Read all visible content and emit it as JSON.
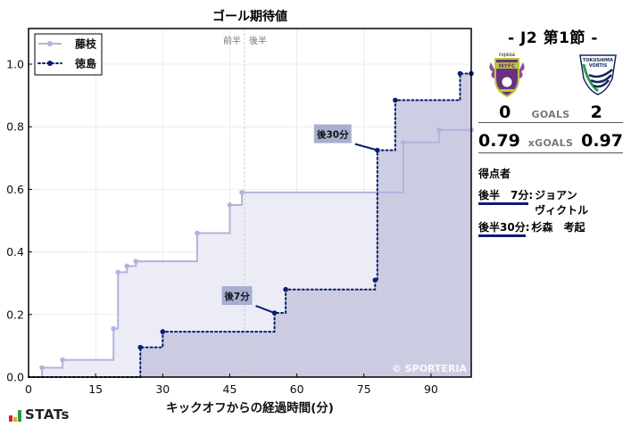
{
  "title": "ゴール期待値",
  "half_labels": {
    "first": "前半",
    "second": "後半"
  },
  "legend": [
    {
      "label": "藤枝",
      "color": "#b3b3dd",
      "style": "solid"
    },
    {
      "label": "徳島",
      "color": "#0a1f6e",
      "style": "dotted"
    }
  ],
  "annotations": [
    {
      "label": "後7分",
      "team": "徳島",
      "minute": 55,
      "xg": 0.205
    },
    {
      "label": "後30分",
      "team": "徳島",
      "minute": 78,
      "xg": 0.725
    }
  ],
  "watermark": "© SPORTERIA",
  "side": {
    "round": "- J2 第1節 -",
    "home_logo": "FUJIEDA MYFC",
    "away_logo": "TOKUSHIMA VORTIS",
    "goals": {
      "home": "0",
      "label": "GOALS",
      "away": "2"
    },
    "xgoals": {
      "home": "0.79",
      "label": "xGOALS",
      "away": "0.97"
    },
    "scorers_heading": "得点者",
    "scorers": [
      {
        "time": "後半　7分",
        "sep": ":",
        "name": "ジョアン\nヴィクトル"
      },
      {
        "time": "後半30分",
        "sep": ":",
        "name": "杉森　考起"
      }
    ]
  },
  "footer": {
    "brand": "STATs",
    "brand_colors": [
      "#d9262b",
      "#e8a81c",
      "#2a9d3c"
    ]
  },
  "chart_data": {
    "type": "line",
    "step": true,
    "title": "ゴール期待値",
    "xlabel": "キックオフからの経過時間(分)",
    "ylabel": "",
    "xlim": [
      0,
      99
    ],
    "ylim": [
      0,
      1.12
    ],
    "xticks": [
      0,
      15,
      30,
      45,
      60,
      75,
      90
    ],
    "yticks": [
      0.0,
      0.2,
      0.4,
      0.6,
      0.8,
      1.0
    ],
    "grid": true,
    "halftime_minute": 48.3,
    "legend_position": "upper left",
    "series": [
      {
        "name": "藤枝",
        "color": "#b3b3dd",
        "fill": "#ececf6",
        "line_style": "solid",
        "x": [
          0,
          3,
          7.6,
          19,
          20,
          22,
          24,
          37.7,
          45,
          47.7,
          83.8,
          91.8,
          99
        ],
        "y": [
          0,
          0.03,
          0.055,
          0.155,
          0.335,
          0.355,
          0.37,
          0.46,
          0.55,
          0.59,
          0.75,
          0.79,
          0.79
        ]
      },
      {
        "name": "徳島",
        "color": "#0a1f6e",
        "fill": "#c8c9e0",
        "line_style": "dotted",
        "x": [
          0,
          25,
          30,
          55,
          57.5,
          77.5,
          78,
          82,
          96.5,
          99
        ],
        "y": [
          0,
          0.095,
          0.145,
          0.205,
          0.28,
          0.31,
          0.725,
          0.885,
          0.97,
          0.97
        ]
      }
    ]
  }
}
